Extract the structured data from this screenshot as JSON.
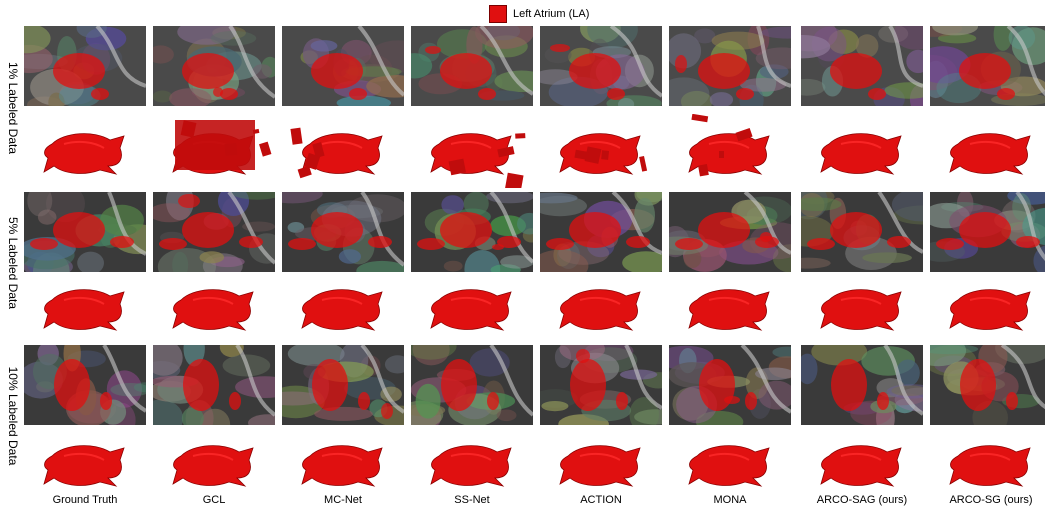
{
  "legend": {
    "label": "Left Atrium (LA)",
    "color": "#e01010"
  },
  "rows": [
    {
      "label": "1% Labeled Data"
    },
    {
      "label": "5% Labeled Data"
    },
    {
      "label": "10% Labeled Data"
    }
  ],
  "methods": [
    {
      "label": "Ground Truth"
    },
    {
      "label": "GCL"
    },
    {
      "label": "MC-Net"
    },
    {
      "label": "SS-Net"
    },
    {
      "label": "ACTION"
    },
    {
      "label": "MONA"
    },
    {
      "label": "ARCO-SAG (ours)"
    },
    {
      "label": "ARCO-SG (ours)"
    }
  ]
}
